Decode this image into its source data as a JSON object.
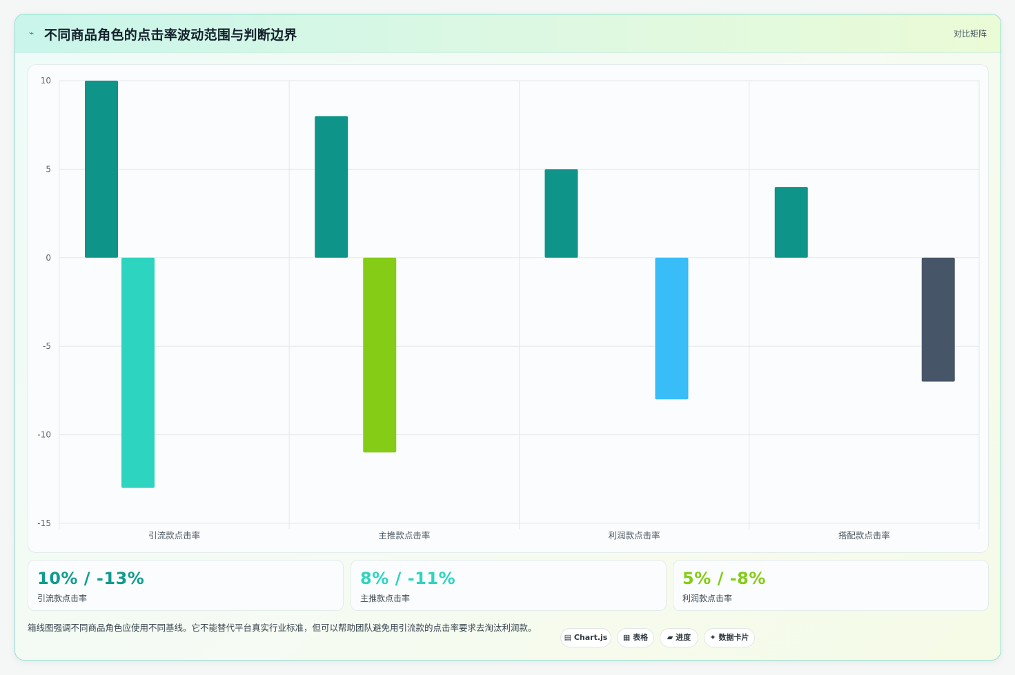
{
  "header": {
    "title": "不同商品角色的点击率波动范围与判断边界",
    "tag": "对比矩阵"
  },
  "colors": {
    "positive": "#0e9488",
    "negative": [
      "#2dd4bf",
      "#84cc16",
      "#38bdf8",
      "#475569"
    ],
    "stat_values": [
      "#0f9b8e",
      "#2dd4bf",
      "#84cc16"
    ]
  },
  "chart_data": {
    "type": "bar",
    "categories": [
      "引流款点击率",
      "主推款点击率",
      "利润款点击率",
      "搭配款点击率"
    ],
    "series": [
      {
        "values": [
          10,
          8,
          5,
          4
        ]
      },
      {
        "values": [
          -13,
          -11,
          -8,
          -7
        ]
      }
    ],
    "ylim": [
      -15,
      10
    ],
    "yticks": [
      "10",
      "5",
      "0",
      "-5",
      "-10",
      "-15"
    ],
    "grid": true
  },
  "stats": [
    {
      "value": "10% / -13%",
      "label": "引流款点击率"
    },
    {
      "value": "8% / -11%",
      "label": "主推款点击率"
    },
    {
      "value": "5% / -8%",
      "label": "利润款点击率"
    }
  ],
  "footer": {
    "note": "箱线图强调不同商品角色应使用不同基线。它不能替代平台真实行业标准，但可以帮助团队避免用引流款的点击率要求去淘汰利润款。",
    "chips": [
      "▤ Chart.js",
      "▦ 表格",
      "▰ 进度",
      "✦ 数据卡片"
    ]
  }
}
